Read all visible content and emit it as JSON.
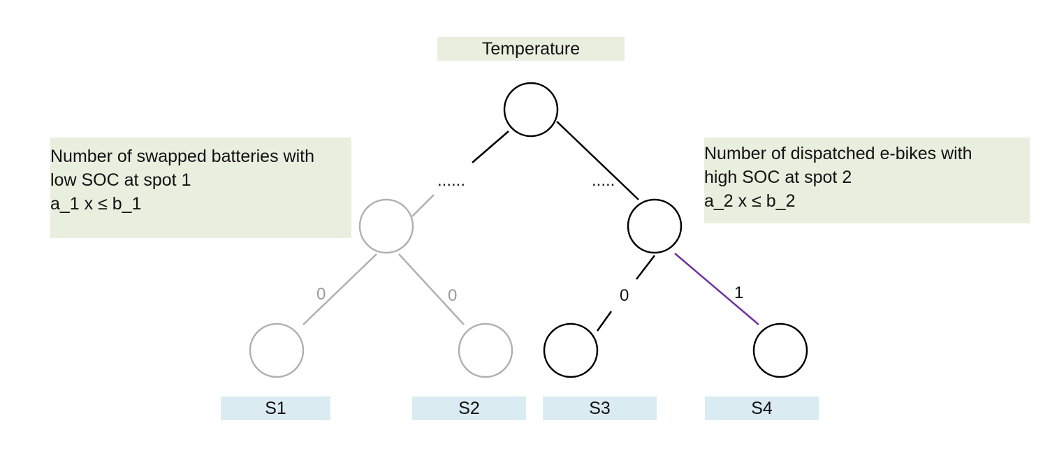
{
  "root_label": "Temperature",
  "left_node": {
    "lines": [
      "Number of swapped batteries with",
      "low SOC at spot 1",
      "a_1 x ≤ b_1"
    ]
  },
  "right_node": {
    "lines": [
      "Number of dispatched e-bikes with",
      "high SOC at spot 2",
      "a_2 x ≤ b_2"
    ]
  },
  "ellipsis": [
    "......",
    "....."
  ],
  "edge_labels": [
    "0",
    "0",
    "0",
    "1"
  ],
  "leaves": [
    "S1",
    "S2",
    "S3",
    "S4"
  ],
  "colors": {
    "active": "#000000",
    "inactive": "#b0b0b0",
    "highlight_edge": "#7030a0",
    "label_green": "#e9efdf",
    "label_blue": "#dbebf2"
  }
}
